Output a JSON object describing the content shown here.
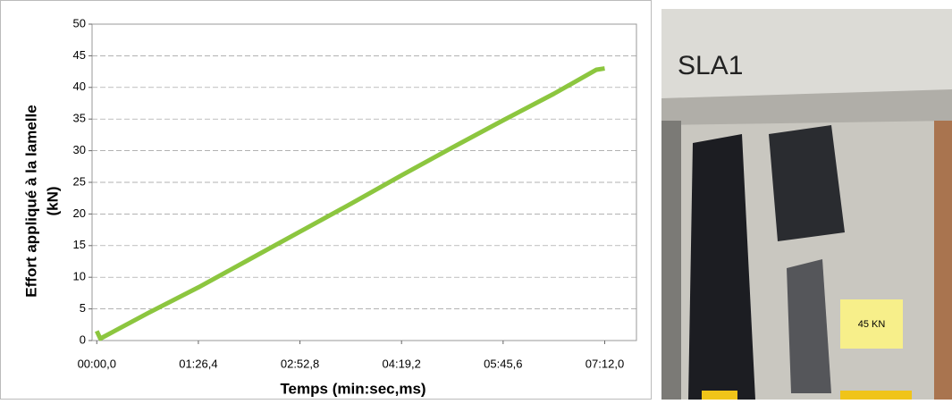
{
  "chart_data": {
    "type": "line",
    "y_label": [
      "Effort appliqué à la lamelle",
      "(kN)"
    ],
    "x_label": "Temps (min:sec,ms)",
    "x": [
      0,
      3,
      43.2,
      86.4,
      129.6,
      172.8,
      216,
      259.2,
      302.4,
      345.6,
      388.8,
      425,
      432
    ],
    "series": [
      {
        "name": "Effort",
        "color": "#8cc63f",
        "values": [
          1.5,
          0.3,
          4.3,
          8.4,
          12.8,
          17.2,
          21.6,
          26.1,
          30.5,
          34.8,
          39.0,
          42.8,
          43.0
        ]
      }
    ],
    "xlim": [
      -4,
      459
    ],
    "xticks": [
      {
        "value": 0,
        "label": "00:00,0"
      },
      {
        "value": 86.4,
        "label": "01:26,4"
      },
      {
        "value": 172.8,
        "label": "02:52,8"
      },
      {
        "value": 259.2,
        "label": "04:19,2"
      },
      {
        "value": 345.6,
        "label": "05:45,6"
      },
      {
        "value": 432,
        "label": "07:12,0"
      }
    ],
    "ylim": [
      0,
      50
    ],
    "yticks": [
      0,
      5,
      10,
      15,
      20,
      25,
      30,
      35,
      40,
      45,
      50
    ],
    "grid": true
  },
  "photo": {
    "texts": [
      "SLA1",
      "45 KN"
    ]
  }
}
